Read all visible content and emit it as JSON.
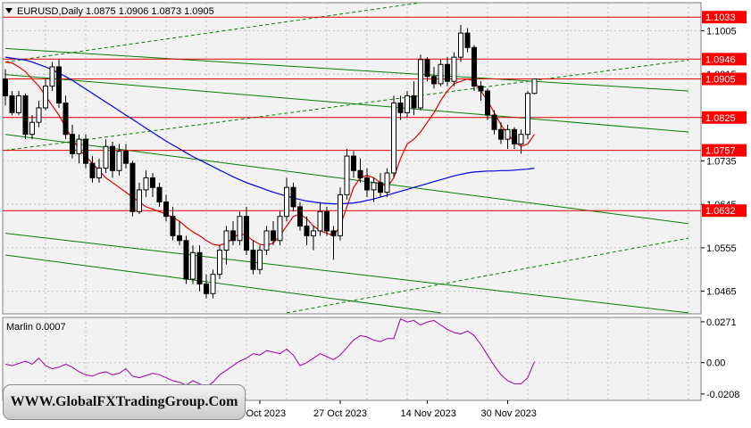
{
  "chart_title": "EURUSD,Daily  1.0875 1.0906 1.0873 1.0905",
  "indicator_label": "Marlin 0.0007",
  "watermark_text": "WWW.GlobalFXTradingGroup.Com",
  "colors": {
    "background": "#ffffff",
    "plot_bg": "#f2f2f2",
    "grid": "#c0c0c0",
    "level_line": "#e00000",
    "level_label_bg": "#ff0000",
    "channel": "#008000",
    "ma_fast": "#e00000",
    "ma_slow": "#0000dd",
    "oscillator": "#a000a0",
    "candle": "#000000"
  },
  "chart_data": [
    {
      "type": "candlestick",
      "symbol": "EURUSD",
      "timeframe": "Daily",
      "last_ohlc": {
        "open": 1.0875,
        "high": 1.0906,
        "low": 1.0873,
        "close": 1.0905
      },
      "ylim": [
        1.0418,
        1.1063
      ],
      "y_ticks": [
        "1.1005",
        "1.0915",
        "1.0825",
        "1.0735",
        "1.0645",
        "1.0555",
        "1.0465"
      ],
      "x_ticks": [
        "11 Oct 2023",
        "27 Oct 2023",
        "14 Nov 2023",
        "30 Nov 2023"
      ],
      "x_tick_index": [
        38,
        50,
        63,
        75
      ],
      "grid": true,
      "price_levels": [
        {
          "label": "1.1033",
          "value": 1.1033
        },
        {
          "label": "1.0946",
          "value": 1.0946
        },
        {
          "label": "1.0905",
          "value": 1.0905
        },
        {
          "label": "1.0825",
          "value": 1.0825
        },
        {
          "label": "1.0757",
          "value": 1.0757
        },
        {
          "label": "1.0632",
          "value": 1.0632
        }
      ],
      "channel_lines": [
        {
          "style": "solid",
          "from": [
            0,
            1.0968
          ],
          "to": [
            102,
            1.088
          ]
        },
        {
          "style": "solid",
          "from": [
            0,
            1.0914
          ],
          "to": [
            102,
            1.0795
          ]
        },
        {
          "style": "solid",
          "from": [
            0,
            1.079
          ],
          "to": [
            102,
            1.0605
          ]
        },
        {
          "style": "solid",
          "from": [
            0,
            1.0585
          ],
          "to": [
            102,
            1.042
          ]
        },
        {
          "style": "solid",
          "from": [
            0,
            1.054
          ],
          "to": [
            65,
            1.042
          ]
        },
        {
          "style": "dashed",
          "from": [
            0,
            1.0757
          ],
          "to": [
            102,
            1.0944
          ]
        },
        {
          "style": "dashed",
          "from": [
            42,
            1.042
          ],
          "to": [
            102,
            1.0575
          ]
        },
        {
          "style": "dashed",
          "from": [
            0,
            1.094
          ],
          "to": [
            62,
            1.1063
          ]
        }
      ],
      "candles": [
        [
          1.0905,
          1.0925,
          1.085,
          1.087
        ],
        [
          1.087,
          1.088,
          1.083,
          1.0835
        ],
        [
          1.0835,
          1.088,
          1.083,
          1.087
        ],
        [
          1.087,
          1.0875,
          1.078,
          1.079
        ],
        [
          1.079,
          1.083,
          1.078,
          1.0815
        ],
        [
          1.0815,
          1.086,
          1.0805,
          1.0845
        ],
        [
          1.0845,
          1.0905,
          1.084,
          1.089
        ],
        [
          1.089,
          1.094,
          1.088,
          1.093
        ],
        [
          1.093,
          1.0945,
          1.0845,
          1.0855
        ],
        [
          1.0855,
          1.087,
          1.078,
          1.079
        ],
        [
          1.079,
          1.081,
          1.074,
          1.075
        ],
        [
          1.075,
          1.079,
          1.073,
          1.078
        ],
        [
          1.078,
          1.079,
          1.072,
          1.073
        ],
        [
          1.073,
          1.0745,
          1.069,
          1.07
        ],
        [
          1.07,
          1.074,
          1.069,
          1.072
        ],
        [
          1.072,
          1.078,
          1.071,
          1.0765
        ],
        [
          1.0765,
          1.0775,
          1.07,
          1.0715
        ],
        [
          1.0715,
          1.077,
          1.0705,
          1.0755
        ],
        [
          1.0755,
          1.077,
          1.072,
          1.073
        ],
        [
          1.073,
          1.0735,
          1.062,
          1.063
        ],
        [
          1.063,
          1.069,
          1.0625,
          1.0675
        ],
        [
          1.0675,
          1.0715,
          1.066,
          1.07
        ],
        [
          1.07,
          1.071,
          1.066,
          1.068
        ],
        [
          1.068,
          1.069,
          1.064,
          1.065
        ],
        [
          1.065,
          1.0665,
          1.061,
          1.062
        ],
        [
          1.062,
          1.064,
          1.057,
          1.058
        ],
        [
          1.058,
          1.061,
          1.056,
          1.057
        ],
        [
          1.057,
          1.058,
          1.048,
          1.049
        ],
        [
          1.049,
          1.056,
          1.048,
          1.0545
        ],
        [
          1.0545,
          1.056,
          1.0465,
          1.048
        ],
        [
          1.048,
          1.05,
          1.045,
          1.046
        ],
        [
          1.046,
          1.051,
          1.045,
          1.05
        ],
        [
          1.05,
          1.056,
          1.049,
          1.055
        ],
        [
          1.055,
          1.06,
          1.052,
          1.059
        ],
        [
          1.059,
          1.061,
          1.056,
          1.057
        ],
        [
          1.057,
          1.063,
          1.056,
          1.062
        ],
        [
          1.062,
          1.064,
          1.054,
          1.055
        ],
        [
          1.055,
          1.057,
          1.05,
          1.051
        ],
        [
          1.051,
          1.056,
          1.05,
          1.055
        ],
        [
          1.055,
          1.06,
          1.054,
          1.059
        ],
        [
          1.059,
          1.061,
          1.056,
          1.057
        ],
        [
          1.057,
          1.063,
          1.056,
          1.062
        ],
        [
          1.062,
          1.07,
          1.061,
          1.068
        ],
        [
          1.068,
          1.069,
          1.063,
          1.064
        ],
        [
          1.064,
          1.065,
          1.059,
          1.06
        ],
        [
          1.06,
          1.062,
          1.056,
          1.058
        ],
        [
          1.058,
          1.06,
          1.055,
          1.059
        ],
        [
          1.059,
          1.065,
          1.058,
          1.063
        ],
        [
          1.063,
          1.064,
          1.058,
          1.059
        ],
        [
          1.059,
          1.06,
          1.053,
          1.058
        ],
        [
          1.058,
          1.068,
          1.057,
          1.0665
        ],
        [
          1.0665,
          1.076,
          1.0655,
          1.0745
        ],
        [
          1.0745,
          1.0755,
          1.07,
          1.0715
        ],
        [
          1.0715,
          1.074,
          1.069,
          1.07
        ],
        [
          1.07,
          1.072,
          1.066,
          1.0675
        ],
        [
          1.0675,
          1.07,
          1.065,
          1.069
        ],
        [
          1.069,
          1.071,
          1.066,
          1.067
        ],
        [
          1.067,
          1.072,
          1.066,
          1.071
        ],
        [
          1.071,
          1.087,
          1.07,
          1.0855
        ],
        [
          1.0855,
          1.087,
          1.082,
          1.0835
        ],
        [
          1.0835,
          1.088,
          1.0825,
          1.087
        ],
        [
          1.087,
          1.09,
          1.083,
          1.0845
        ],
        [
          1.0845,
          1.0955,
          1.084,
          1.0945
        ],
        [
          1.0945,
          1.095,
          1.09,
          1.091
        ],
        [
          1.091,
          1.093,
          1.0885,
          1.0895
        ],
        [
          1.0895,
          1.0945,
          1.089,
          1.0935
        ],
        [
          1.0935,
          1.095,
          1.089,
          1.09
        ],
        [
          1.09,
          1.096,
          1.089,
          1.095
        ],
        [
          1.095,
          1.1017,
          1.094,
          1.1
        ],
        [
          1.1,
          1.101,
          1.096,
          1.097
        ],
        [
          1.097,
          1.0975,
          1.088,
          1.089
        ],
        [
          1.089,
          1.09,
          1.086,
          1.088
        ],
        [
          1.088,
          1.0885,
          1.082,
          1.083
        ],
        [
          1.083,
          1.084,
          1.079,
          1.08
        ],
        [
          1.08,
          1.0815,
          1.077,
          1.078
        ],
        [
          1.078,
          1.081,
          1.076,
          1.08
        ],
        [
          1.08,
          1.0805,
          1.076,
          1.077
        ],
        [
          1.077,
          1.08,
          1.075,
          1.079
        ],
        [
          1.079,
          1.088,
          1.078,
          1.0875
        ],
        [
          1.0875,
          1.0906,
          1.0873,
          1.0905
        ]
      ],
      "series": [
        {
          "name": "",
          "values": [
            1.094,
            1.0938,
            1.093,
            1.092,
            1.0905,
            1.089,
            1.087,
            1.085,
            1.083,
            1.0805,
            1.078,
            1.076,
            1.0745,
            1.073,
            1.0715,
            1.07,
            1.069,
            1.068,
            1.067,
            1.066,
            1.065,
            1.064,
            1.0635,
            1.063,
            1.0625,
            1.0618,
            1.061,
            1.0598,
            1.0588,
            1.058,
            1.057,
            1.0562,
            1.056,
            1.0565,
            1.0575,
            1.0585,
            1.058,
            1.057,
            1.0562,
            1.056,
            1.0565,
            1.058,
            1.06,
            1.062,
            1.0625,
            1.0615,
            1.06,
            1.059,
            1.0585,
            1.058,
            1.06,
            1.064,
            1.068,
            1.07,
            1.0705,
            1.07,
            1.069,
            1.068,
            1.07,
            1.074,
            1.077,
            1.078,
            1.0795,
            1.0815,
            1.0835,
            1.086,
            1.088,
            1.0895,
            1.09,
            1.0905,
            1.09,
            1.088,
            1.086,
            1.0835,
            1.081,
            1.079,
            1.0775,
            1.0765,
            1.077,
            1.079
          ],
          "color": "#e00000"
        },
        {
          "name": "",
          "values": [
            1.095,
            1.0948,
            1.0946,
            1.0944,
            1.094,
            1.0935,
            1.093,
            1.0924,
            1.0917,
            1.091,
            1.0902,
            1.0893,
            1.0884,
            1.0875,
            1.0866,
            1.0857,
            1.0848,
            1.0839,
            1.083,
            1.0821,
            1.0812,
            1.0803,
            1.0794,
            1.0785,
            1.0776,
            1.0768,
            1.076,
            1.0752,
            1.0744,
            1.0737,
            1.073,
            1.0723,
            1.0716,
            1.0709,
            1.0702,
            1.0696,
            1.069,
            1.0685,
            1.068,
            1.0675,
            1.067,
            1.0666,
            1.0662,
            1.0658,
            1.0655,
            1.0652,
            1.065,
            1.0648,
            1.0647,
            1.0646,
            1.0646,
            1.0647,
            1.0648,
            1.065,
            1.0653,
            1.0656,
            1.066,
            1.0664,
            1.0668,
            1.0672,
            1.0676,
            1.068,
            1.0684,
            1.0688,
            1.0692,
            1.0696,
            1.07,
            1.0704,
            1.0707,
            1.071,
            1.0712,
            1.0713,
            1.0714,
            1.0714,
            1.0715,
            1.0715,
            1.0716,
            1.0717,
            1.0718,
            1.072
          ],
          "color": "#0000dd"
        }
      ]
    },
    {
      "type": "line",
      "name": "Marlin",
      "current_value": 0.0007,
      "ylim": [
        -0.025,
        0.03
      ],
      "y_ticks": [
        "0.0271",
        "0.00",
        "-0.0208"
      ],
      "series": [
        {
          "name": "",
          "values": [
            -0.001,
            -0.002,
            -0.0005,
            0.001,
            -0.001,
            0.003,
            -0.002,
            -0.004,
            -0.003,
            -0.001,
            -0.003,
            -0.006,
            -0.008,
            -0.009,
            -0.007,
            -0.006,
            -0.008,
            -0.007,
            -0.004,
            -0.009,
            -0.01,
            -0.0085,
            -0.007,
            -0.008,
            -0.01,
            -0.012,
            -0.013,
            -0.015,
            -0.012,
            -0.014,
            -0.016,
            -0.013,
            -0.008,
            -0.005,
            -0.002,
            0.001,
            0.003,
            0.006,
            0.005,
            0.008,
            0.007,
            0.006,
            0.009,
            0.005,
            -0.002,
            0.0,
            0.003,
            0.006,
            0.004,
            0.002,
            0.005,
            0.01,
            0.015,
            0.018,
            0.017,
            0.015,
            0.014,
            0.016,
            0.016,
            0.029,
            0.027,
            0.028,
            0.025,
            0.027,
            0.028,
            0.025,
            0.022,
            0.02,
            0.019,
            0.021,
            0.018,
            0.012,
            0.005,
            -0.002,
            -0.008,
            -0.012,
            -0.014,
            -0.014,
            -0.01,
            0.0007
          ],
          "color": "#a000a0"
        }
      ]
    }
  ]
}
